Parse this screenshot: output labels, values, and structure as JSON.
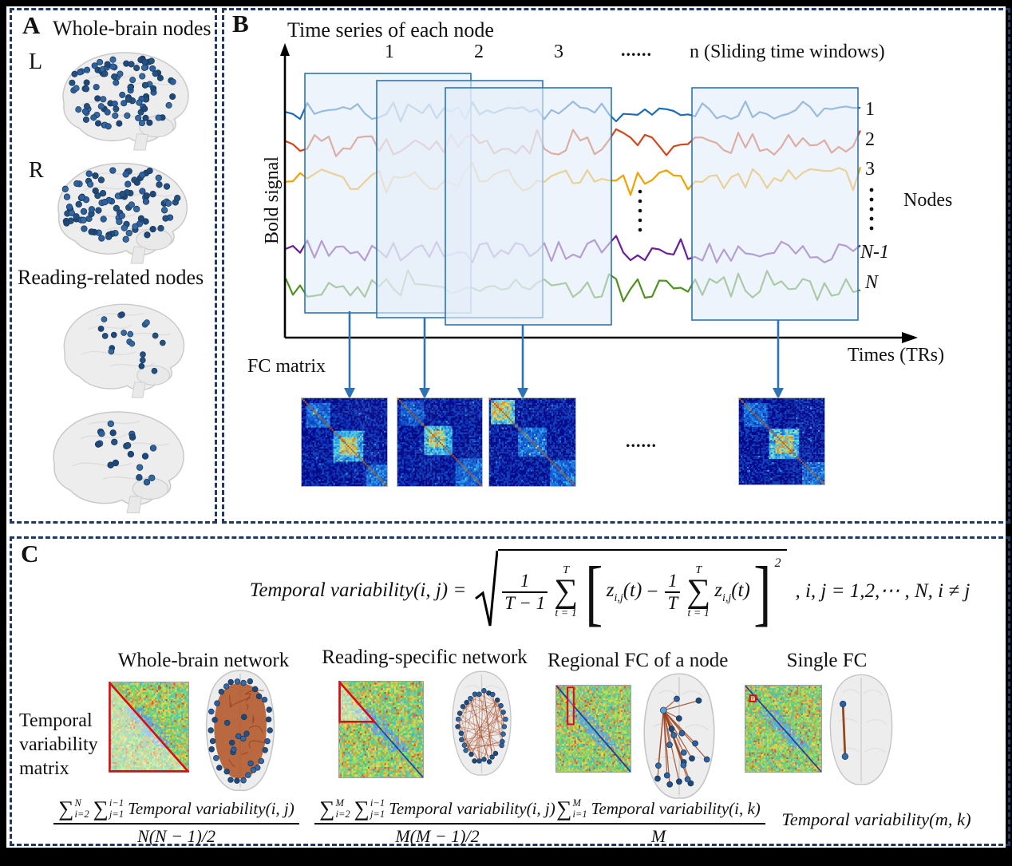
{
  "panels": {
    "a": {
      "label": "A",
      "title": "Whole-brain nodes",
      "left_hemisphere": "L",
      "right_hemisphere": "R",
      "subtitle": "Reading-related nodes"
    },
    "b": {
      "label": "B",
      "title": "Time series of each node",
      "win1": "1",
      "win2": "2",
      "win3": "3",
      "win_dots": "......",
      "win_n": "n (Sliding time windows)",
      "y_axis": "Bold signal",
      "x_axis": "Times (TRs)",
      "node1": "1",
      "node2": "2",
      "node3": "3",
      "node_n1": "N-1",
      "node_n": "N",
      "nodes_caption": "Nodes",
      "fc_label": "FC matrix",
      "mat_dots": "......"
    },
    "c": {
      "label": "C",
      "formula": {
        "lhs": "Temporal variability(i, j) =",
        "num1": "1",
        "den1": "T − 1",
        "sup": "T",
        "sub": "t = 1",
        "sigma": "∑",
        "lb": "[",
        "rb": "]",
        "z": "z",
        "zsub": "i,j",
        "zt": "(t)",
        "minus": "−",
        "num2": "1",
        "den2": "T",
        "exp": "2",
        "cond": ", i, j = 1,2,⋯ , N, i ≠ j"
      },
      "matrix_label_1": "Temporal",
      "matrix_label_2": "variability",
      "matrix_label_3": "matrix",
      "col1": {
        "title": "Whole-brain network",
        "s1sup": "N",
        "s1sub": "i=2",
        "s2sup": "i−1",
        "s2sub": "j=1",
        "tv": "Temporal variability(i, j)",
        "den": "N(N − 1)/2"
      },
      "col2": {
        "title": "Reading-specific network",
        "s1sup": "M",
        "s1sub": "i=2",
        "s2sup": "i−1",
        "s2sub": "j=1",
        "tv": "Temporal variability(i, j)",
        "den": "M(M − 1)/2"
      },
      "col3": {
        "title": "Regional FC of a node",
        "s1sup": "M",
        "s1sub": "i=1",
        "tv": "Temporal variability(i, k)",
        "den": "M"
      },
      "col4": {
        "title": "Single FC",
        "tv": "Temporal variability(m, k)"
      }
    }
  },
  "colors": {
    "trace1": "#1e6bb8",
    "trace2": "#d2481c",
    "trace3": "#f0a202",
    "trace4": "#691f96",
    "trace5": "#4f9222",
    "window_border": "#2e74b5",
    "arrow": "#2e74b5",
    "dash_border": "#1f3864",
    "node_dot": "#2d5f9e",
    "edge_orange": "#a8522a",
    "highlight_red": "#e30613"
  }
}
